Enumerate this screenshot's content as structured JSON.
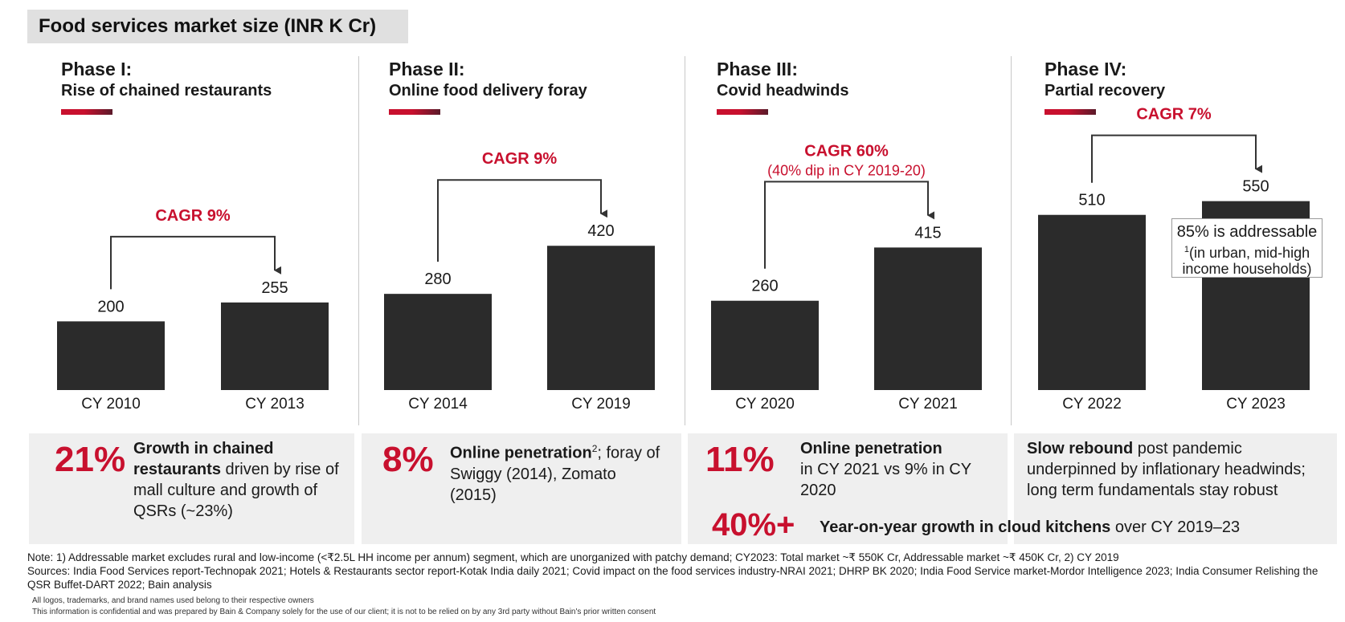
{
  "title": "Food services market size (INR K Cr)",
  "phases": [
    {
      "name": "Phase I:",
      "subtitle": "Rise of chained restaurants"
    },
    {
      "name": "Phase II:",
      "subtitle": "Online food delivery foray"
    },
    {
      "name": "Phase III:",
      "subtitle": "Covid headwinds"
    },
    {
      "name": "Phase IV:",
      "subtitle": "Partial recovery"
    }
  ],
  "chart_data": {
    "type": "bar",
    "title": "Food services market size (INR K Cr)",
    "unit": "INR K Cr",
    "categories": [
      "CY 2010",
      "CY 2013",
      "CY 2014",
      "CY 2019",
      "CY 2020",
      "CY 2021",
      "CY 2022",
      "CY 2023"
    ],
    "values": [
      200,
      255,
      280,
      420,
      260,
      415,
      510,
      550
    ],
    "bar_color": "#2b2b2b",
    "annotations": [
      {
        "label": "CAGR 9%",
        "from": "CY 2010",
        "to": "CY 2013"
      },
      {
        "label": "CAGR 9%",
        "from": "CY 2014",
        "to": "CY 2019"
      },
      {
        "label": "CAGR 60%",
        "sublabel": "(40% dip in CY 2019-20)",
        "from": "CY 2020",
        "to": "CY 2021"
      },
      {
        "label": "CAGR 7%",
        "from": "CY 2022",
        "to": "CY 2023"
      }
    ]
  },
  "callout": {
    "line1": "85% is addressable",
    "sup": "1",
    "line2": "(in urban, mid-high",
    "line3": "income households)"
  },
  "panels": [
    {
      "big": "21%",
      "bold": "Growth in chained restaurants",
      "rest": " driven by rise of mall culture and growth of QSRs (~23%)"
    },
    {
      "big": "8%",
      "bold": "Online penetration",
      "sup": "2",
      "rest": "; foray of Swiggy (2014), Zomato (2015)"
    },
    {
      "big": "11%",
      "bold": "Online penetration",
      "rest": "in CY 2021 vs 9% in CY 2020"
    },
    {
      "bold": "Slow rebound",
      "rest": " post pandemic underpinned by inflationary headwinds; long term fundamentals stay robust"
    }
  ],
  "cloud": {
    "big": "40%+",
    "bold": "Year-on-year growth in cloud kitchens",
    "rest": " over CY 2019–23"
  },
  "notes": {
    "note": "Note: 1) Addressable market excludes rural and low-income (<₹2.5L HH income per annum) segment, which are unorganized with patchy demand; CY2023: Total market ~₹ 550K Cr, Addressable market ~₹ 450K Cr, 2) CY 2019",
    "sources": "Sources: India Food Services report-Technopak 2021; Hotels & Restaurants sector report-Kotak India daily 2021; Covid impact on the food services industry-NRAI 2021; DHRP BK 2020; India Food Service market-Mordor Intelligence 2023; India Consumer Relishing the QSR Buffet-DART 2022; Bain analysis",
    "logos": "All logos, trademarks, and brand names used belong to their respective owners",
    "confidential": "This information is confidential and was prepared by Bain & Company solely for the use of our client; it is not to be relied on by any 3rd party without Bain's prior written consent"
  },
  "colors": {
    "accent": "#c8102e",
    "bar": "#2b2b2b",
    "panel": "#efefef",
    "title_bg": "#e0e0e0"
  }
}
